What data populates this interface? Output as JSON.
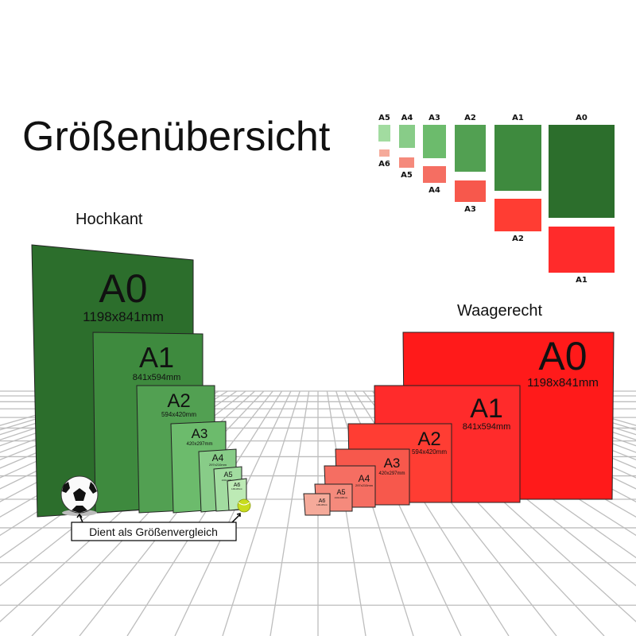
{
  "title": "Größenübersicht",
  "portrait_heading": "Hochkant",
  "landscape_heading": "Waagerecht",
  "comparison_caption": "Dient als Größenvergleich",
  "colors": {
    "green": [
      "#2c6e2c",
      "#3e8a3e",
      "#52a052",
      "#6cbb6c",
      "#88cc88",
      "#a2dca0",
      "#bdeab5"
    ],
    "red": [
      "#ff1a1a",
      "#ff2b2b",
      "#ff3d33",
      "#f7584c",
      "#f56e62",
      "#f58a7c",
      "#f5aa9a"
    ]
  },
  "portrait": [
    {
      "name": "A0",
      "dims": "1198x841mm"
    },
    {
      "name": "A1",
      "dims": "841x594mm"
    },
    {
      "name": "A2",
      "dims": "594x420mm"
    },
    {
      "name": "A3",
      "dims": "420x297mm"
    },
    {
      "name": "A4",
      "dims": "297x210mm"
    },
    {
      "name": "A5",
      "dims": "210x148mm"
    },
    {
      "name": "A6",
      "dims": "148x105mm"
    }
  ],
  "landscape": [
    {
      "name": "A0",
      "dims": "1198x841mm"
    },
    {
      "name": "A1",
      "dims": "841x594mm"
    },
    {
      "name": "A2",
      "dims": "594x420mm"
    },
    {
      "name": "A3",
      "dims": "420x297mm"
    },
    {
      "name": "A4",
      "dims": "297x210mm"
    },
    {
      "name": "A5",
      "dims": "210x148mm"
    },
    {
      "name": "A6",
      "dims": "148x105mm"
    }
  ],
  "legend": {
    "green": [
      "A5",
      "A4",
      "A3",
      "A2",
      "A1",
      "A0"
    ],
    "red": [
      "A6",
      "A5",
      "A4",
      "A3",
      "A2",
      "A1"
    ]
  },
  "objects": [
    "soccer-ball",
    "tennis-ball"
  ]
}
